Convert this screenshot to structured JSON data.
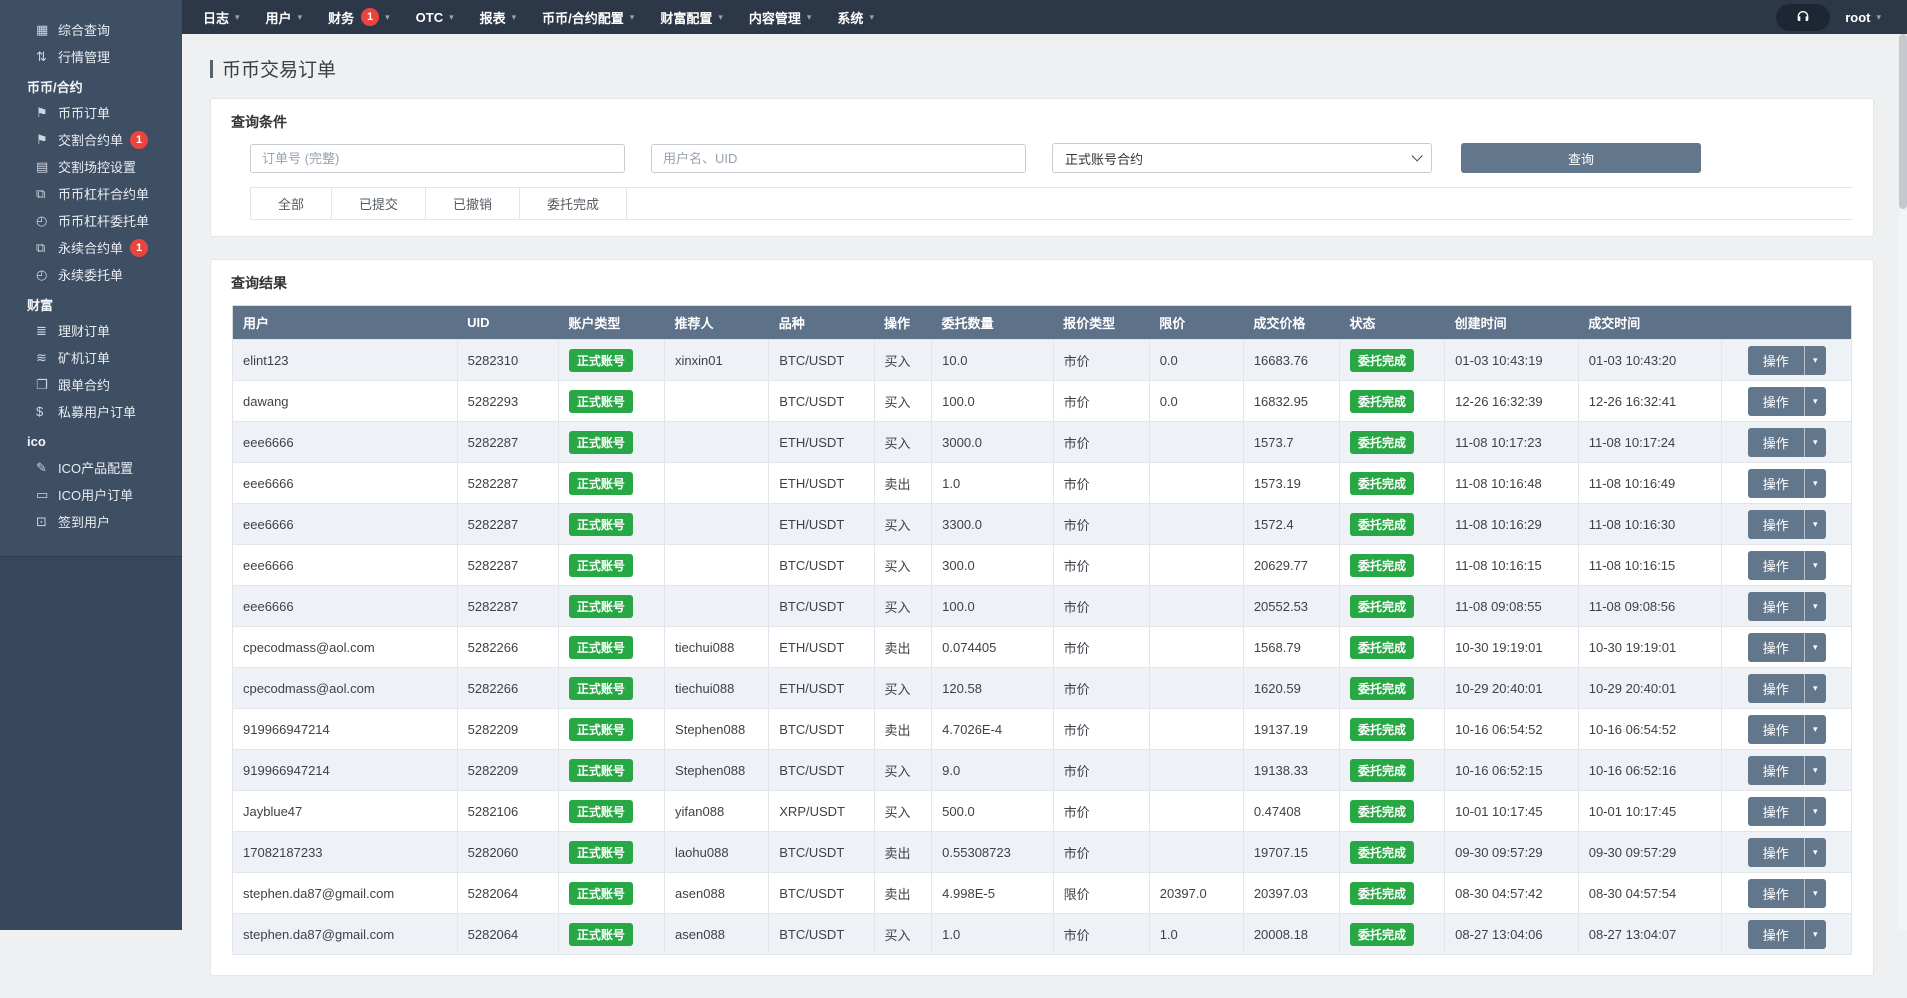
{
  "navbar": {
    "items": [
      {
        "id": "logs",
        "label": "日志"
      },
      {
        "id": "users",
        "label": "用户"
      },
      {
        "id": "finance",
        "label": "财务",
        "badge": "1"
      },
      {
        "id": "otc",
        "label": "OTC"
      },
      {
        "id": "reports",
        "label": "报表"
      },
      {
        "id": "coin-contract-config",
        "label": "币币/合约配置"
      },
      {
        "id": "wealth-config",
        "label": "财富配置"
      },
      {
        "id": "content-mgmt",
        "label": "内容管理"
      },
      {
        "id": "system",
        "label": "系统"
      }
    ],
    "user": "root"
  },
  "sidebar": {
    "items": [
      {
        "type": "item",
        "id": "overview-query",
        "label": "综合查询",
        "icon": "grid-icon",
        "glyph": "▦"
      },
      {
        "type": "item",
        "id": "market-mgmt",
        "label": "行情管理",
        "icon": "sort-icon",
        "glyph": "⇅"
      },
      {
        "type": "section",
        "id": "coin-contract",
        "label": "币币/合约"
      },
      {
        "type": "item",
        "id": "coin-orders",
        "label": "币币订单",
        "icon": "bookmark-icon",
        "glyph": "⚑"
      },
      {
        "type": "item",
        "id": "delivery-contracts",
        "label": "交割合约单",
        "icon": "bookmark-icon",
        "glyph": "⚑",
        "badge": "1"
      },
      {
        "type": "item",
        "id": "delivery-risk-settings",
        "label": "交割场控设置",
        "icon": "file-icon",
        "glyph": "▤"
      },
      {
        "type": "item",
        "id": "coin-margin-contracts",
        "label": "币币杠杆合约单",
        "icon": "copy-icon",
        "glyph": "⧉"
      },
      {
        "type": "item",
        "id": "coin-margin-entrusts",
        "label": "币币杠杆委托单",
        "icon": "file-clock-icon",
        "glyph": "◴"
      },
      {
        "type": "item",
        "id": "perpetual-contracts",
        "label": "永续合约单",
        "icon": "copy-icon",
        "glyph": "⧉",
        "badge": "1"
      },
      {
        "type": "item",
        "id": "perpetual-entrusts",
        "label": "永续委托单",
        "icon": "file-clock-icon",
        "glyph": "◴"
      },
      {
        "type": "section",
        "id": "wealth",
        "label": "财富"
      },
      {
        "type": "item",
        "id": "wealth-orders",
        "label": "理财订单",
        "icon": "database-icon",
        "glyph": "≣"
      },
      {
        "type": "item",
        "id": "miner-orders",
        "label": "矿机订单",
        "icon": "layers-icon",
        "glyph": "≋"
      },
      {
        "type": "item",
        "id": "follow-contracts",
        "label": "跟单合约",
        "icon": "folder-icon",
        "glyph": "❐"
      },
      {
        "type": "item",
        "id": "private-fund-orders",
        "label": "私募用户订单",
        "icon": "dollar-icon",
        "glyph": "$"
      },
      {
        "type": "section",
        "id": "ico",
        "label": "ico"
      },
      {
        "type": "item",
        "id": "ico-product-config",
        "label": "ICO产品配置",
        "icon": "file-edit-icon",
        "glyph": "✎"
      },
      {
        "type": "item",
        "id": "ico-user-orders",
        "label": "ICO用户订单",
        "icon": "desktop-icon",
        "glyph": "▭"
      },
      {
        "type": "item",
        "id": "checkin-users",
        "label": "签到用户",
        "icon": "edit-square-icon",
        "glyph": "⊡"
      }
    ]
  },
  "page": {
    "title": "币币交易订单"
  },
  "query": {
    "panel_title": "查询条件",
    "order_placeholder": "订单号 (完整)",
    "user_placeholder": "用户名、UID",
    "account_select_value": "正式账号合约",
    "search_label": "查询",
    "tabs": [
      "全部",
      "已提交",
      "已撤销",
      "委托完成"
    ]
  },
  "results": {
    "panel_title": "查询结果",
    "columns": [
      "用户",
      "UID",
      "账户类型",
      "推荐人",
      "品种",
      "操作",
      "委托数量",
      "报价类型",
      "限价",
      "成交价格",
      "状态",
      "创建时间",
      "成交时间",
      ""
    ],
    "action_label": "操作",
    "rows": [
      {
        "user": "elint123",
        "uid": "5282310",
        "account_type": "正式账号",
        "referrer": "xinxin01",
        "pair": "BTC/USDT",
        "side": "买入",
        "amount": "10.0",
        "price_type": "市价",
        "limit_price": "0.0",
        "deal_price": "16683.76",
        "status": "委托完成",
        "created_at": "01-03 10:43:19",
        "dealt_at": "01-03 10:43:20"
      },
      {
        "user": "dawang",
        "uid": "5282293",
        "account_type": "正式账号",
        "referrer": "",
        "pair": "BTC/USDT",
        "side": "买入",
        "amount": "100.0",
        "price_type": "市价",
        "limit_price": "0.0",
        "deal_price": "16832.95",
        "status": "委托完成",
        "created_at": "12-26 16:32:39",
        "dealt_at": "12-26 16:32:41"
      },
      {
        "user": "eee6666",
        "uid": "5282287",
        "account_type": "正式账号",
        "referrer": "",
        "pair": "ETH/USDT",
        "side": "买入",
        "amount": "3000.0",
        "price_type": "市价",
        "limit_price": "",
        "deal_price": "1573.7",
        "status": "委托完成",
        "created_at": "11-08 10:17:23",
        "dealt_at": "11-08 10:17:24"
      },
      {
        "user": "eee6666",
        "uid": "5282287",
        "account_type": "正式账号",
        "referrer": "",
        "pair": "ETH/USDT",
        "side": "卖出",
        "amount": "1.0",
        "price_type": "市价",
        "limit_price": "",
        "deal_price": "1573.19",
        "status": "委托完成",
        "created_at": "11-08 10:16:48",
        "dealt_at": "11-08 10:16:49"
      },
      {
        "user": "eee6666",
        "uid": "5282287",
        "account_type": "正式账号",
        "referrer": "",
        "pair": "ETH/USDT",
        "side": "买入",
        "amount": "3300.0",
        "price_type": "市价",
        "limit_price": "",
        "deal_price": "1572.4",
        "status": "委托完成",
        "created_at": "11-08 10:16:29",
        "dealt_at": "11-08 10:16:30"
      },
      {
        "user": "eee6666",
        "uid": "5282287",
        "account_type": "正式账号",
        "referrer": "",
        "pair": "BTC/USDT",
        "side": "买入",
        "amount": "300.0",
        "price_type": "市价",
        "limit_price": "",
        "deal_price": "20629.77",
        "status": "委托完成",
        "created_at": "11-08 10:16:15",
        "dealt_at": "11-08 10:16:15"
      },
      {
        "user": "eee6666",
        "uid": "5282287",
        "account_type": "正式账号",
        "referrer": "",
        "pair": "BTC/USDT",
        "side": "买入",
        "amount": "100.0",
        "price_type": "市价",
        "limit_price": "",
        "deal_price": "20552.53",
        "status": "委托完成",
        "created_at": "11-08 09:08:55",
        "dealt_at": "11-08 09:08:56"
      },
      {
        "user": "cpecodmass@aol.com",
        "uid": "5282266",
        "account_type": "正式账号",
        "referrer": "tiechui088",
        "pair": "ETH/USDT",
        "side": "卖出",
        "amount": "0.074405",
        "price_type": "市价",
        "limit_price": "",
        "deal_price": "1568.79",
        "status": "委托完成",
        "created_at": "10-30 19:19:01",
        "dealt_at": "10-30 19:19:01"
      },
      {
        "user": "cpecodmass@aol.com",
        "uid": "5282266",
        "account_type": "正式账号",
        "referrer": "tiechui088",
        "pair": "ETH/USDT",
        "side": "买入",
        "amount": "120.58",
        "price_type": "市价",
        "limit_price": "",
        "deal_price": "1620.59",
        "status": "委托完成",
        "created_at": "10-29 20:40:01",
        "dealt_at": "10-29 20:40:01"
      },
      {
        "user": "919966947214",
        "uid": "5282209",
        "account_type": "正式账号",
        "referrer": "Stephen088",
        "pair": "BTC/USDT",
        "side": "卖出",
        "amount": "4.7026E-4",
        "price_type": "市价",
        "limit_price": "",
        "deal_price": "19137.19",
        "status": "委托完成",
        "created_at": "10-16 06:54:52",
        "dealt_at": "10-16 06:54:52"
      },
      {
        "user": "919966947214",
        "uid": "5282209",
        "account_type": "正式账号",
        "referrer": "Stephen088",
        "pair": "BTC/USDT",
        "side": "买入",
        "amount": "9.0",
        "price_type": "市价",
        "limit_price": "",
        "deal_price": "19138.33",
        "status": "委托完成",
        "created_at": "10-16 06:52:15",
        "dealt_at": "10-16 06:52:16"
      },
      {
        "user": "Jayblue47",
        "uid": "5282106",
        "account_type": "正式账号",
        "referrer": "yifan088",
        "pair": "XRP/USDT",
        "side": "买入",
        "amount": "500.0",
        "price_type": "市价",
        "limit_price": "",
        "deal_price": "0.47408",
        "status": "委托完成",
        "created_at": "10-01 10:17:45",
        "dealt_at": "10-01 10:17:45"
      },
      {
        "user": "17082187233",
        "uid": "5282060",
        "account_type": "正式账号",
        "referrer": "laohu088",
        "pair": "BTC/USDT",
        "side": "卖出",
        "amount": "0.55308723",
        "price_type": "市价",
        "limit_price": "",
        "deal_price": "19707.15",
        "status": "委托完成",
        "created_at": "09-30 09:57:29",
        "dealt_at": "09-30 09:57:29"
      },
      {
        "user": "stephen.da87@gmail.com",
        "uid": "5282064",
        "account_type": "正式账号",
        "referrer": "asen088",
        "pair": "BTC/USDT",
        "side": "卖出",
        "amount": "4.998E-5",
        "price_type": "限价",
        "limit_price": "20397.0",
        "deal_price": "20397.03",
        "status": "委托完成",
        "created_at": "08-30 04:57:42",
        "dealt_at": "08-30 04:57:54"
      },
      {
        "user": "stephen.da87@gmail.com",
        "uid": "5282064",
        "account_type": "正式账号",
        "referrer": "asen088",
        "pair": "BTC/USDT",
        "side": "买入",
        "amount": "1.0",
        "price_type": "市价",
        "limit_price": "1.0",
        "deal_price": "20008.18",
        "status": "委托完成",
        "created_at": "08-27 13:04:06",
        "dealt_at": "08-27 13:04:07"
      }
    ]
  },
  "colors": {
    "navbar_bg": "#2c3848",
    "sidebar_bg": "#3e4e63",
    "table_header_bg": "#5d7189",
    "accent_button": "#62768c",
    "success_badge": "#28a745",
    "danger_badge": "#e9443e",
    "row_alt_bg": "#eef1f6",
    "content_bg": "#eef0f2"
  }
}
